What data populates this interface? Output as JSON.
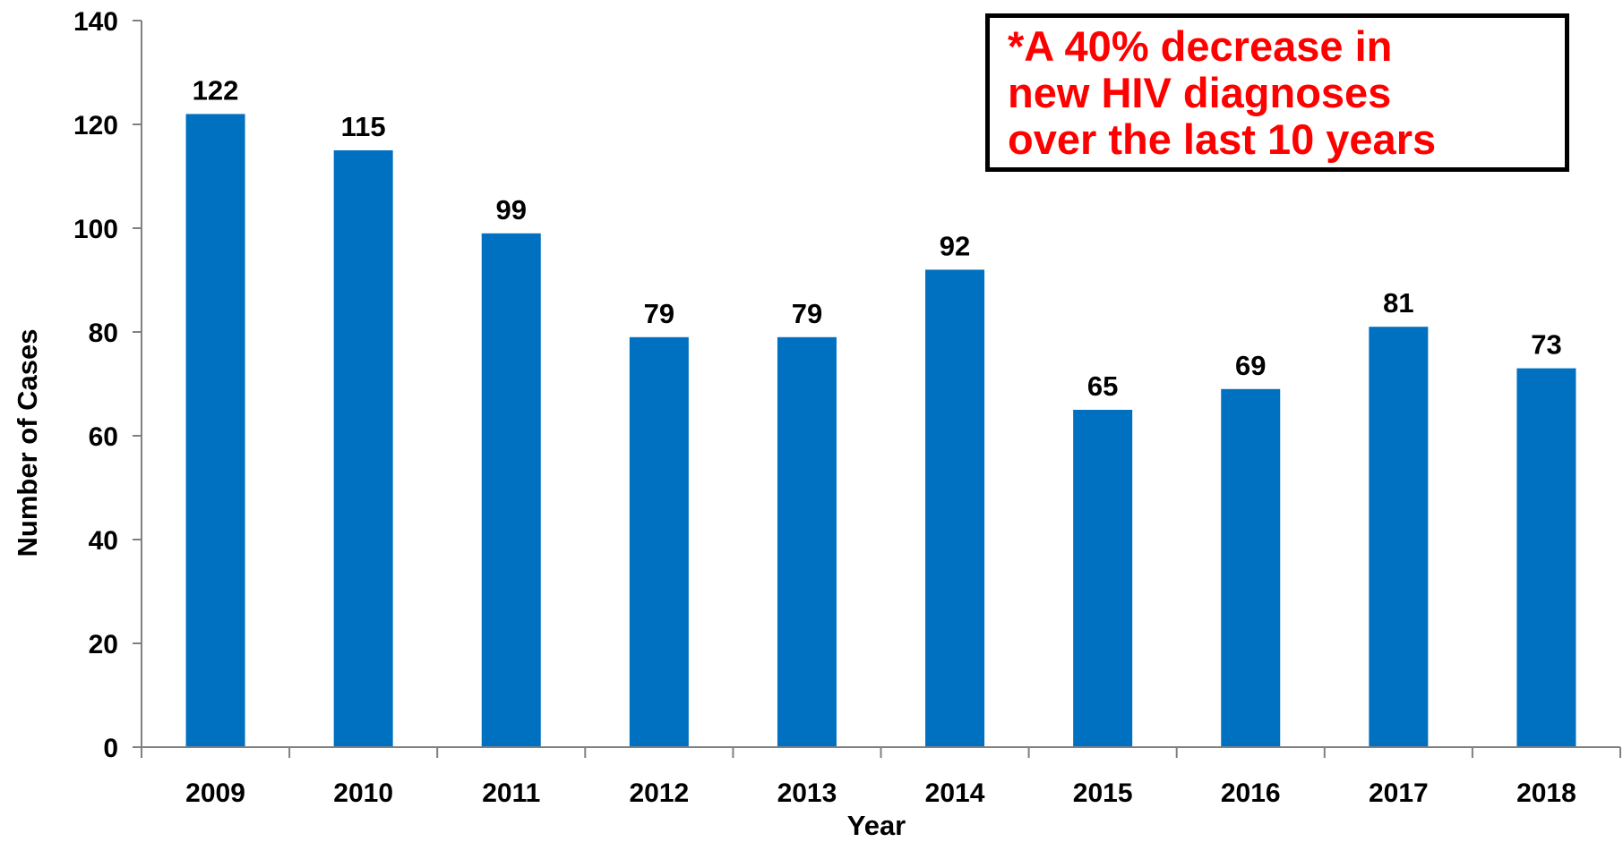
{
  "chart_data": {
    "type": "bar",
    "categories": [
      "2009",
      "2010",
      "2011",
      "2012",
      "2013",
      "2014",
      "2015",
      "2016",
      "2017",
      "2018"
    ],
    "values": [
      122,
      115,
      99,
      79,
      79,
      92,
      65,
      69,
      81,
      73
    ],
    "xlabel": "Year",
    "ylabel": "Number of Cases",
    "ylim": [
      0,
      140
    ],
    "yticks": [
      0,
      20,
      40,
      60,
      80,
      100,
      120,
      140
    ],
    "grid": false,
    "legend": "none",
    "bar_color": "#0070c0",
    "annotation": {
      "lines": [
        "*A 40% decrease in",
        "new HIV diagnoses",
        "over the last 10 years"
      ],
      "color": "#ff0000"
    }
  }
}
